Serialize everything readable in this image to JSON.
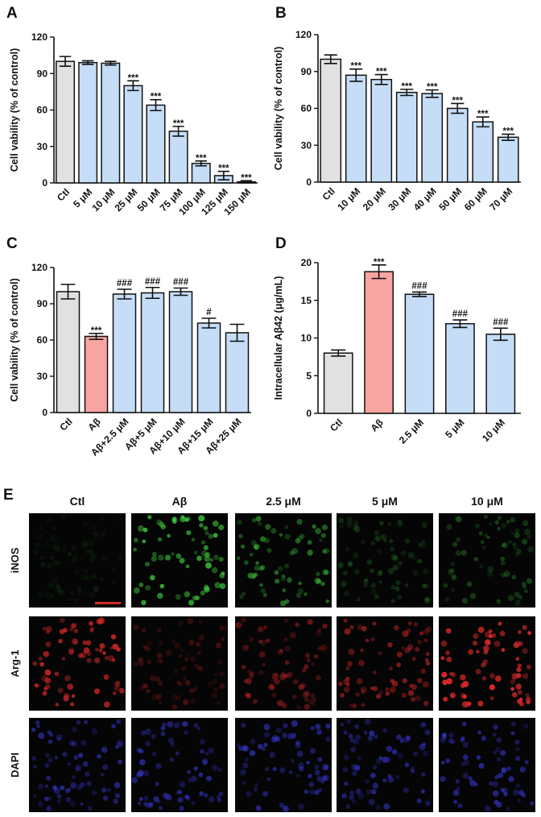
{
  "panel_e": {
    "label": "E",
    "columns": [
      "Ctl",
      "Aβ",
      "2.5 μM",
      "5 μM",
      "10 μM"
    ],
    "rows": [
      {
        "name": "iNOS",
        "color": "#3ec93e",
        "intensity": [
          0.08,
          0.85,
          0.55,
          0.22,
          0.3
        ]
      },
      {
        "name": "Arg-1",
        "color": "#e22a2a",
        "intensity": [
          0.8,
          0.25,
          0.45,
          0.55,
          0.95
        ]
      },
      {
        "name": "DAPI",
        "color": "#3a3ae0",
        "intensity": [
          0.6,
          0.6,
          0.6,
          0.6,
          0.6
        ]
      }
    ],
    "scale_bar_color": "#d62a2a"
  },
  "chart_data": [
    {
      "panel": "A",
      "type": "bar",
      "ylabel": "Cell vability (% of control)",
      "ylim": [
        0,
        120
      ],
      "yticks": [
        0,
        30,
        60,
        90,
        120
      ],
      "categories": [
        "Ctl",
        "5 μM",
        "10 μM",
        "25 μM",
        "50 μM",
        "75 μM",
        "100 μM",
        "125 μM",
        "150 μM"
      ],
      "values": [
        100,
        99,
        98.5,
        80,
        64,
        42.5,
        16,
        6,
        0.8
      ],
      "errors": [
        4,
        1.5,
        1.5,
        4,
        4.5,
        4,
        2,
        3.5,
        1
      ],
      "annotations": [
        "",
        "",
        "",
        "***",
        "***",
        "***",
        "***",
        "***",
        "***"
      ],
      "colors": [
        "#e1e1e1",
        "#c5ddf7",
        "#c5ddf7",
        "#c5ddf7",
        "#c5ddf7",
        "#c5ddf7",
        "#c5ddf7",
        "#c5ddf7",
        "#c5ddf7"
      ]
    },
    {
      "panel": "B",
      "type": "bar",
      "ylabel": "Cell vability (% of control)",
      "ylim": [
        0,
        120
      ],
      "yticks": [
        0,
        30,
        60,
        90,
        120
      ],
      "categories": [
        "Ctl",
        "10 μM",
        "20 μM",
        "30 μM",
        "40 μM",
        "50 μM",
        "60 μM",
        "70 μM"
      ],
      "values": [
        100,
        87,
        83.5,
        73,
        72,
        60,
        49,
        36.5
      ],
      "errors": [
        3.5,
        5,
        4,
        2.5,
        3,
        4,
        4,
        2.5
      ],
      "annotations": [
        "",
        "***",
        "***",
        "***",
        "***",
        "***",
        "***",
        "***"
      ],
      "colors": [
        "#e1e1e1",
        "#c5ddf7",
        "#c5ddf7",
        "#c5ddf7",
        "#c5ddf7",
        "#c5ddf7",
        "#c5ddf7",
        "#c5ddf7"
      ]
    },
    {
      "panel": "C",
      "type": "bar",
      "ylabel": "Cell vability (% of control)",
      "ylim": [
        0,
        120
      ],
      "yticks": [
        0,
        30,
        60,
        90,
        120
      ],
      "categories": [
        "Ctl",
        "Aβ",
        "Aβ+2.5 μM",
        "Aβ+5 μM",
        "Aβ+10 μM",
        "Aβ+15 μM",
        "Aβ+25 μM"
      ],
      "values": [
        100,
        63,
        98,
        99,
        100,
        74,
        66
      ],
      "errors": [
        6,
        2.5,
        4,
        4.5,
        3,
        4,
        7
      ],
      "annotations": [
        "",
        "***",
        "###",
        "###",
        "###",
        "#",
        ""
      ],
      "colors": [
        "#e1e1e1",
        "#f8a5a2",
        "#c5ddf7",
        "#c5ddf7",
        "#c5ddf7",
        "#c5ddf7",
        "#c5ddf7"
      ]
    },
    {
      "panel": "D",
      "type": "bar",
      "ylabel": "Intracellular Aβ42 (μg/mL)",
      "ylim": [
        0,
        20
      ],
      "yticks": [
        0,
        5,
        10,
        15,
        20
      ],
      "categories": [
        "Ctl",
        "Aβ",
        "2.5 μM",
        "5 μM",
        "10 μM"
      ],
      "values": [
        8,
        18.8,
        15.8,
        11.9,
        10.5
      ],
      "errors": [
        0.4,
        0.9,
        0.3,
        0.5,
        0.8
      ],
      "annotations": [
        "",
        "***",
        "###",
        "###",
        "###"
      ],
      "colors": [
        "#e1e1e1",
        "#f8a5a2",
        "#c5ddf7",
        "#c5ddf7",
        "#c5ddf7"
      ]
    }
  ]
}
